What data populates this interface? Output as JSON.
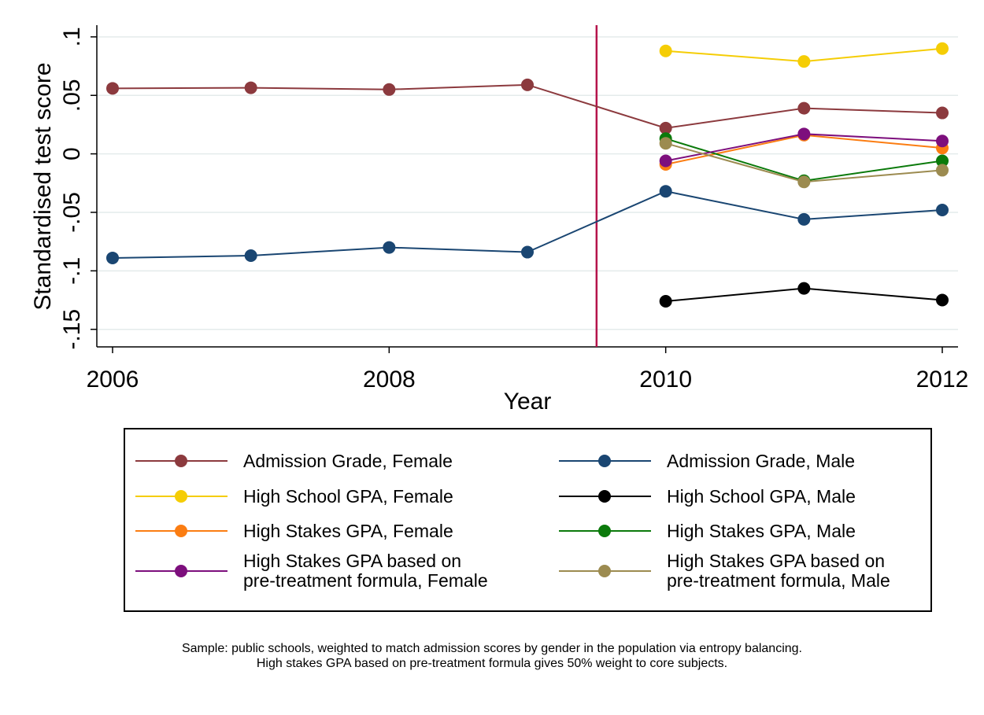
{
  "chart_data": {
    "type": "line",
    "xlabel": "Year",
    "ylabel": "Standardised test score",
    "xlim": [
      2006,
      2012
    ],
    "ylim": [
      -0.165,
      0.11
    ],
    "xticks": [
      2006,
      2008,
      2010,
      2012
    ],
    "xtick_labels": [
      "2006",
      "2008",
      "2010",
      "2012"
    ],
    "yticks": [
      -0.15,
      -0.1,
      -0.05,
      0,
      0.05,
      0.1
    ],
    "ytick_labels": [
      "-.15",
      "-.1",
      "-.05",
      "0",
      ".05",
      ".1"
    ],
    "grid": true,
    "reference_line_x": 2009.5,
    "reference_line_color": "#b5134b",
    "legend_position": "bottom",
    "series": [
      {
        "name": "Admission Grade, Female",
        "color": "#8c3a3e",
        "x": [
          2006,
          2007,
          2008,
          2009,
          2010,
          2011,
          2012
        ],
        "y": [
          0.056,
          0.0565,
          0.055,
          0.059,
          0.022,
          0.039,
          0.035
        ]
      },
      {
        "name": "Admission Grade, Male",
        "color": "#1a4672",
        "x": [
          2006,
          2007,
          2008,
          2009,
          2010,
          2011,
          2012
        ],
        "y": [
          -0.089,
          -0.087,
          -0.08,
          -0.084,
          -0.032,
          -0.056,
          -0.048
        ]
      },
      {
        "name": "High School GPA, Female",
        "color": "#f5cd05",
        "x": [
          2010,
          2011,
          2012
        ],
        "y": [
          0.088,
          0.079,
          0.09
        ]
      },
      {
        "name": "High School GPA, Male",
        "color": "#000000",
        "x": [
          2010,
          2011,
          2012
        ],
        "y": [
          -0.126,
          -0.115,
          -0.125
        ]
      },
      {
        "name": "High Stakes GPA, Female",
        "color": "#fb7d12",
        "x": [
          2010,
          2011,
          2012
        ],
        "y": [
          -0.009,
          0.016,
          0.005
        ]
      },
      {
        "name": "High Stakes GPA, Male",
        "color": "#0b7a0b",
        "x": [
          2010,
          2011,
          2012
        ],
        "y": [
          0.013,
          -0.023,
          -0.006
        ]
      },
      {
        "name": "High Stakes GPA based on pre-treatment formula, Female",
        "color": "#7d0f7d",
        "legend_lines": [
          "High Stakes GPA based on",
          "pre-treatment formula, Female"
        ],
        "x": [
          2010,
          2011,
          2012
        ],
        "y": [
          -0.006,
          0.017,
          0.011
        ]
      },
      {
        "name": "High Stakes GPA based on pre-treatment formula, Male",
        "color": "#9c8b50",
        "legend_lines": [
          "High Stakes GPA based on",
          "pre-treatment formula, Male"
        ],
        "x": [
          2010,
          2011,
          2012
        ],
        "y": [
          0.009,
          -0.024,
          -0.014
        ]
      }
    ],
    "notes": [
      "Sample: public schools, weighted to match admission scores by gender in the population via entropy balancing.",
      "High stakes GPA based on pre-treatment formula gives 50% weight to core subjects."
    ]
  }
}
